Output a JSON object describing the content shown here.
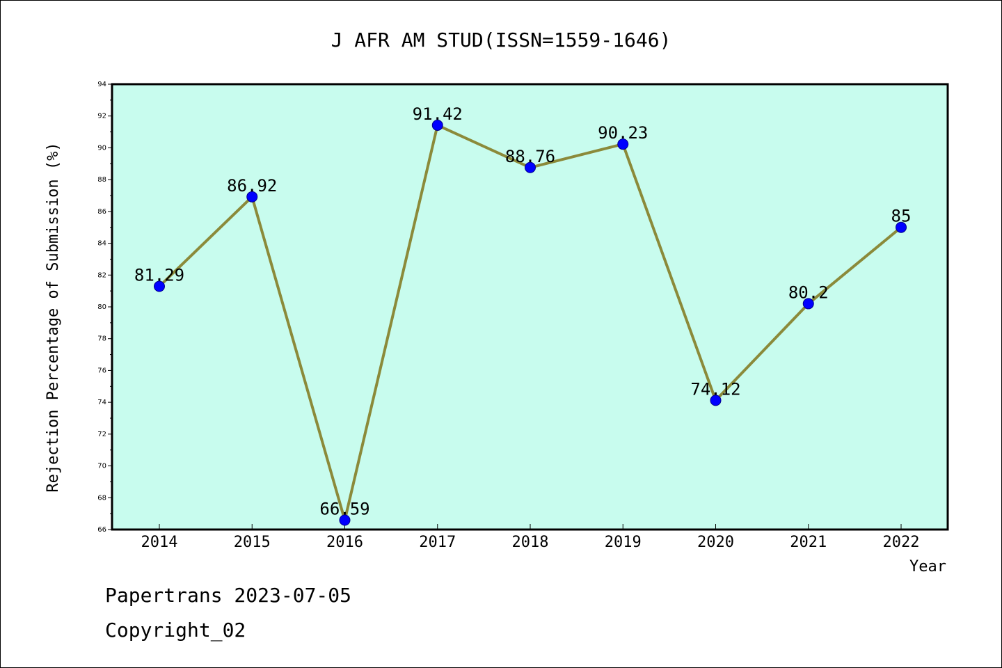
{
  "colors": {
    "plot_background": "#c8fcee",
    "line": "#8b8a3a",
    "marker": "#0000ff",
    "axis": "#000000"
  },
  "footer": {
    "line1": "Papertrans 2023-07-05",
    "line2": "Copyright_02"
  },
  "chart_data": {
    "type": "line",
    "title": "J AFR AM STUD(ISSN=1559-1646)",
    "xlabel": "Year",
    "ylabel": "Rejection Percentage of Submission (%)",
    "categories": [
      "2014",
      "2015",
      "2016",
      "2017",
      "2018",
      "2019",
      "2020",
      "2021",
      "2022"
    ],
    "series": [
      {
        "values": [
          81.29,
          86.92,
          66.59,
          91.42,
          88.76,
          90.23,
          74.12,
          80.2,
          85
        ],
        "labels": [
          "81.29",
          "86.92",
          "66.59",
          "91.42",
          "88.76",
          "90.23",
          "74.12",
          "80.2",
          "85"
        ]
      }
    ],
    "ylim": [
      66,
      94
    ],
    "yticks": [
      "66",
      "68",
      "70",
      "72",
      "74",
      "76",
      "78",
      "80",
      "82",
      "84",
      "86",
      "88",
      "90",
      "92",
      "94"
    ],
    "grid": false,
    "legend": "none",
    "marker": "circle"
  }
}
